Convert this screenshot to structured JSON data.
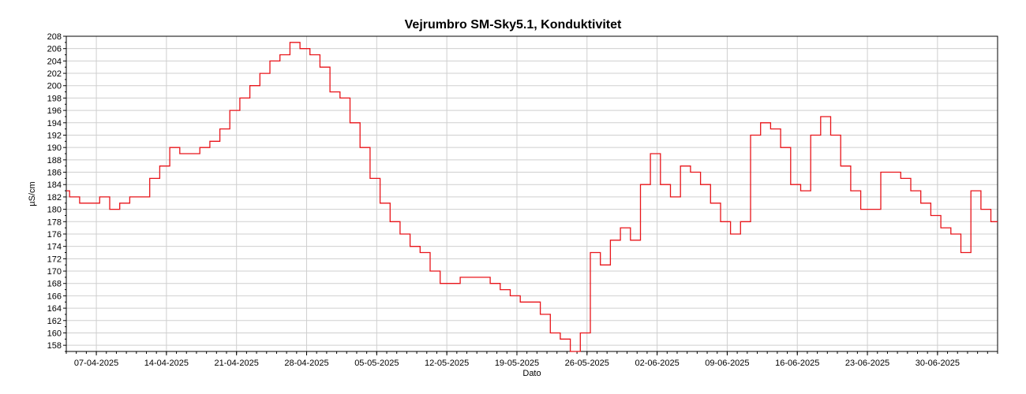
{
  "chart_data": {
    "type": "line",
    "title": "Vejrumbro SM-Sky5.1, Konduktivitet",
    "xlabel": "Dato",
    "ylabel": "µS/cm",
    "ylim": [
      157,
      208
    ],
    "xlim": [
      "2025-04-04",
      "2025-07-06"
    ],
    "grid": true,
    "y_ticks": [
      158,
      160,
      162,
      164,
      166,
      168,
      170,
      172,
      174,
      176,
      178,
      180,
      182,
      184,
      186,
      188,
      190,
      192,
      194,
      196,
      198,
      200,
      202,
      204,
      206,
      208
    ],
    "x_ticks": [
      "07-04-2025",
      "14-04-2025",
      "21-04-2025",
      "28-04-2025",
      "05-05-2025",
      "12-05-2025",
      "19-05-2025",
      "26-05-2025",
      "02-06-2025",
      "09-06-2025",
      "16-06-2025",
      "23-06-2025",
      "30-06-2025"
    ],
    "series": [
      {
        "color": "#e8141a",
        "points": [
          [
            "2025-04-04",
            183
          ],
          [
            "2025-04-05",
            182
          ],
          [
            "2025-04-06",
            181
          ],
          [
            "2025-04-07",
            181
          ],
          [
            "2025-04-08",
            182
          ],
          [
            "2025-04-09",
            180
          ],
          [
            "2025-04-10",
            181
          ],
          [
            "2025-04-11",
            182
          ],
          [
            "2025-04-12",
            182
          ],
          [
            "2025-04-13",
            185
          ],
          [
            "2025-04-14",
            187
          ],
          [
            "2025-04-15",
            190
          ],
          [
            "2025-04-16",
            189
          ],
          [
            "2025-04-17",
            189
          ],
          [
            "2025-04-18",
            190
          ],
          [
            "2025-04-19",
            191
          ],
          [
            "2025-04-20",
            193
          ],
          [
            "2025-04-21",
            196
          ],
          [
            "2025-04-22",
            198
          ],
          [
            "2025-04-23",
            200
          ],
          [
            "2025-04-24",
            202
          ],
          [
            "2025-04-25",
            204
          ],
          [
            "2025-04-26",
            205
          ],
          [
            "2025-04-27",
            207
          ],
          [
            "2025-04-28",
            206
          ],
          [
            "2025-04-29",
            205
          ],
          [
            "2025-04-30",
            203
          ],
          [
            "2025-05-01",
            199
          ],
          [
            "2025-05-02",
            198
          ],
          [
            "2025-05-03",
            194
          ],
          [
            "2025-05-04",
            190
          ],
          [
            "2025-05-05",
            185
          ],
          [
            "2025-05-06",
            181
          ],
          [
            "2025-05-07",
            178
          ],
          [
            "2025-05-08",
            176
          ],
          [
            "2025-05-09",
            174
          ],
          [
            "2025-05-10",
            173
          ],
          [
            "2025-05-11",
            170
          ],
          [
            "2025-05-12",
            168
          ],
          [
            "2025-05-13",
            168
          ],
          [
            "2025-05-14",
            169
          ],
          [
            "2025-05-15",
            169
          ],
          [
            "2025-05-16",
            169
          ],
          [
            "2025-05-17",
            168
          ],
          [
            "2025-05-18",
            167
          ],
          [
            "2025-05-19",
            166
          ],
          [
            "2025-05-20",
            165
          ],
          [
            "2025-05-21",
            165
          ],
          [
            "2025-05-22",
            163
          ],
          [
            "2025-05-23",
            160
          ],
          [
            "2025-05-24",
            159
          ],
          [
            "2025-05-25",
            157
          ],
          [
            "2025-05-26",
            160
          ],
          [
            "2025-05-27",
            173
          ],
          [
            "2025-05-28",
            171
          ],
          [
            "2025-05-29",
            175
          ],
          [
            "2025-05-30",
            177
          ],
          [
            "2025-05-31",
            175
          ],
          [
            "2025-06-01",
            184
          ],
          [
            "2025-06-02",
            189
          ],
          [
            "2025-06-03",
            184
          ],
          [
            "2025-06-04",
            182
          ],
          [
            "2025-06-05",
            187
          ],
          [
            "2025-06-06",
            186
          ],
          [
            "2025-06-07",
            184
          ],
          [
            "2025-06-08",
            181
          ],
          [
            "2025-06-09",
            178
          ],
          [
            "2025-06-10",
            176
          ],
          [
            "2025-06-11",
            178
          ],
          [
            "2025-06-12",
            192
          ],
          [
            "2025-06-13",
            194
          ],
          [
            "2025-06-14",
            193
          ],
          [
            "2025-06-15",
            190
          ],
          [
            "2025-06-16",
            184
          ],
          [
            "2025-06-17",
            183
          ],
          [
            "2025-06-18",
            192
          ],
          [
            "2025-06-19",
            195
          ],
          [
            "2025-06-20",
            192
          ],
          [
            "2025-06-21",
            187
          ],
          [
            "2025-06-22",
            183
          ],
          [
            "2025-06-23",
            180
          ],
          [
            "2025-06-24",
            180
          ],
          [
            "2025-06-25",
            186
          ],
          [
            "2025-06-26",
            186
          ],
          [
            "2025-06-27",
            185
          ],
          [
            "2025-06-28",
            183
          ],
          [
            "2025-06-29",
            181
          ],
          [
            "2025-06-30",
            179
          ],
          [
            "2025-07-01",
            177
          ],
          [
            "2025-07-02",
            176
          ],
          [
            "2025-07-03",
            173
          ],
          [
            "2025-07-04",
            183
          ],
          [
            "2025-07-05",
            180
          ],
          [
            "2025-07-06",
            178
          ]
        ]
      }
    ]
  }
}
